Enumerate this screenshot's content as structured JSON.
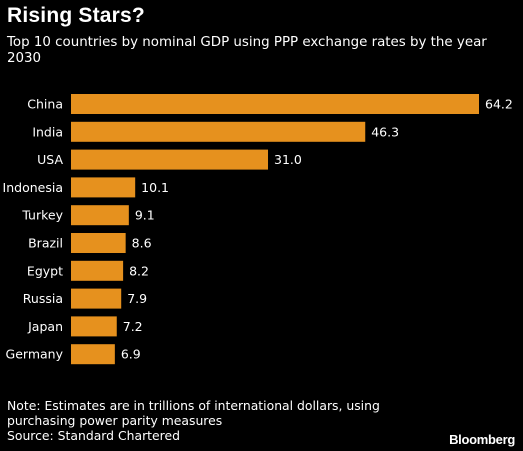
{
  "colors": {
    "background": "#000000",
    "bar": "#e6911e",
    "text": "#ffffff"
  },
  "header": {
    "title": "Rising Stars?",
    "subtitle": "Top 10 countries by nominal GDP using PPP exchange rates by the year 2030"
  },
  "chart_data": {
    "type": "bar",
    "orientation": "horizontal",
    "categories": [
      "China",
      "India",
      "USA",
      "Indonesia",
      "Turkey",
      "Brazil",
      "Egypt",
      "Russia",
      "Japan",
      "Germany"
    ],
    "values": [
      64.2,
      46.3,
      31.0,
      10.1,
      9.1,
      8.6,
      8.2,
      7.9,
      7.2,
      6.9
    ],
    "value_labels": [
      "64.2",
      "46.3",
      "31.0",
      "10.1",
      "9.1",
      "8.6",
      "8.2",
      "7.9",
      "7.2",
      "6.9"
    ],
    "xlim": [
      0,
      64.2
    ],
    "grid": false,
    "legend": "none"
  },
  "footer": {
    "note_line1": "Note: Estimates are in trillions of international dollars, using",
    "note_line2": "purchasing power parity measures",
    "source": "Source: Standard Chartered",
    "brand": "Bloomberg"
  }
}
